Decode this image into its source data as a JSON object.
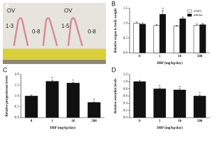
{
  "panels": [
    "A",
    "B",
    "C",
    "D"
  ],
  "photo_labels": [
    "OV",
    "1-3",
    "0-8",
    "OV",
    "1-5",
    "0-8"
  ],
  "chart_data": [
    {
      "type": "bar",
      "panel": "B",
      "ylabel": "Relative organ to body weight",
      "xlabel": "DBP (mg/kg/day)",
      "categories": [
        "0",
        "1",
        "10",
        "500"
      ],
      "ylim": [
        0,
        1.5
      ],
      "yticks": [
        {
          "value": 0,
          "label": "0.0"
        },
        {
          "value": 0.5,
          "label": "0.5"
        },
        {
          "value": 1,
          "label": "1.0"
        },
        {
          "value": 1.5,
          "label": "1.5"
        }
      ],
      "legend": "top-right",
      "series": [
        {
          "name": "ovary",
          "color": "#ffffff",
          "values": [
            1.0,
            0.92,
            0.9,
            0.93
          ],
          "errors": [
            0.04,
            0.04,
            0.03,
            0.04
          ]
        },
        {
          "name": "uterus",
          "color": "#111111",
          "values": [
            0.97,
            1.3,
            1.15,
            0.95
          ],
          "errors": [
            0.04,
            0.12,
            0.06,
            0.04
          ],
          "stars": [
            null,
            "*",
            null,
            null
          ]
        }
      ]
    },
    {
      "type": "bar",
      "panel": "C",
      "ylabel": "Relative progesterone levels",
      "xlabel": "DBP (mg/kg/day)",
      "categories": [
        "0",
        "1",
        "10",
        "500"
      ],
      "ylim": [
        0,
        2
      ],
      "yticks": [
        {
          "value": 0,
          "label": "0.0"
        },
        {
          "value": 0.5,
          "label": "0.5"
        },
        {
          "value": 1,
          "label": "1.0"
        },
        {
          "value": 1.5,
          "label": "1.5"
        },
        {
          "value": 2,
          "label": "2.0"
        }
      ],
      "series": [
        {
          "name": "progesterone",
          "color": "#111111",
          "values": [
            1.0,
            1.68,
            1.6,
            0.7
          ],
          "errors": [
            0.05,
            0.06,
            0.04,
            0.04
          ],
          "stars": [
            null,
            "*",
            "*",
            "*"
          ]
        }
      ]
    },
    {
      "type": "bar",
      "panel": "D",
      "ylabel": "Relative estradiol levels",
      "xlabel": "DBP (mg/kg/day)",
      "categories": [
        "0",
        "1",
        "10",
        "500"
      ],
      "ylim": [
        0,
        1.2
      ],
      "yticks": [
        {
          "value": 0,
          "label": "0.0"
        },
        {
          "value": 0.2,
          "label": "0.2"
        },
        {
          "value": 0.4,
          "label": "0.4"
        },
        {
          "value": 0.6,
          "label": "0.6"
        },
        {
          "value": 0.8,
          "label": "0.8"
        },
        {
          "value": 1,
          "label": "1.0"
        },
        {
          "value": 1.2,
          "label": "1.2"
        }
      ],
      "series": [
        {
          "name": "estradiol",
          "color": "#111111",
          "values": [
            1.0,
            0.8,
            0.77,
            0.6
          ],
          "errors": [
            0.03,
            0.03,
            0.03,
            0.03
          ],
          "stars": [
            null,
            "*",
            "*",
            "*"
          ]
        }
      ]
    }
  ]
}
